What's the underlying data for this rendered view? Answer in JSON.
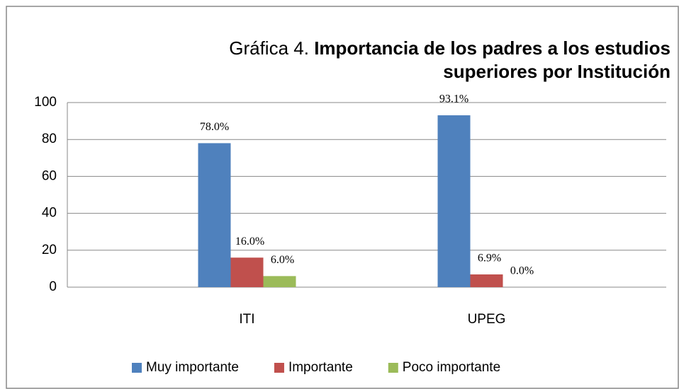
{
  "chart_data": {
    "type": "bar",
    "title_prefix": "Gráfica 4.",
    "title_lines": [
      "Importancia de los padres a los estudios",
      "superiores por Institución"
    ],
    "categories": [
      "ITI",
      "UPEG"
    ],
    "series": [
      {
        "name": "Muy importante",
        "color": "#4f81bd",
        "values": [
          78.0,
          93.1
        ],
        "value_labels": [
          "78.0%",
          "93.1%"
        ]
      },
      {
        "name": "Importante",
        "color": "#c0504d",
        "values": [
          16.0,
          6.9
        ],
        "value_labels": [
          "16.0%",
          "6.9%"
        ]
      },
      {
        "name": "Poco importante",
        "color": "#9bbb59",
        "values": [
          6.0,
          0.0
        ],
        "value_labels": [
          "6.0%",
          "0.0%"
        ]
      }
    ],
    "ylim": [
      0,
      100
    ],
    "yticks": [
      0,
      20,
      40,
      60,
      80,
      100
    ],
    "grid": true,
    "legend": "bottom"
  }
}
